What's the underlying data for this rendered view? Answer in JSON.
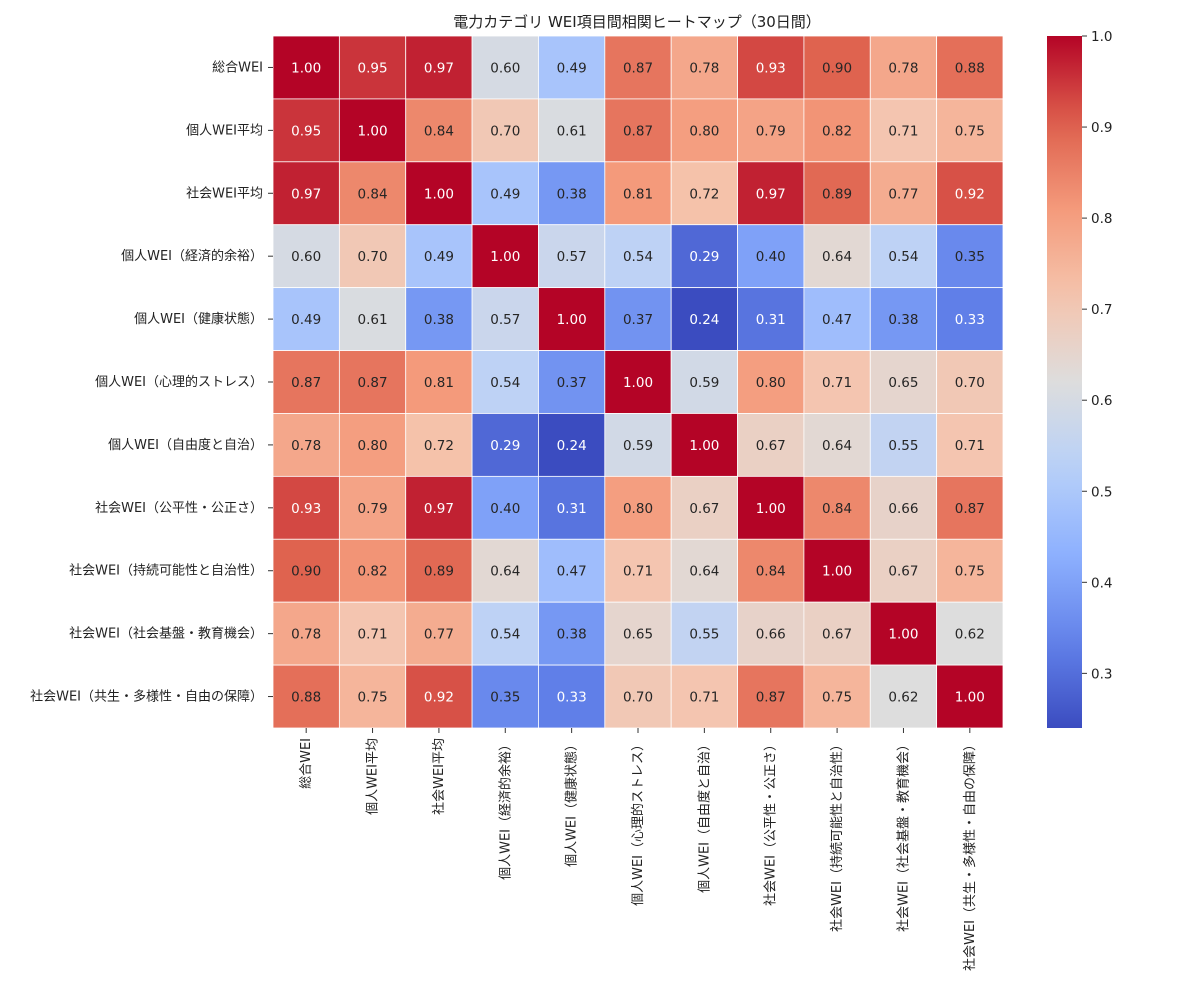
{
  "chart_data": {
    "type": "heatmap",
    "title": "電力カテゴリ WEI項目間相関ヒートマップ（30日間）",
    "xlabel": "",
    "ylabel": "",
    "colormap": "coolwarm",
    "vmin": 0.24,
    "vmax": 1.0,
    "colorbar_ticks": [
      0.3,
      0.4,
      0.5,
      0.6,
      0.7,
      0.8,
      0.9,
      1.0
    ],
    "colorbar_tick_labels": [
      "0.3",
      "0.4",
      "0.5",
      "0.6",
      "0.7",
      "0.8",
      "0.9",
      "1.0"
    ],
    "row_labels": [
      "総合WEI",
      "個人WEI平均",
      "社会WEI平均",
      "個人WEI（経済的余裕）",
      "個人WEI（健康状態）",
      "個人WEI（心理的ストレス）",
      "個人WEI（自由度と自治）",
      "社会WEI（公平性・公正さ）",
      "社会WEI（持続可能性と自治性）",
      "社会WEI（社会基盤・教育機会）",
      "社会WEI（共生・多様性・自由の保障）"
    ],
    "col_labels": [
      "総合WEI",
      "個人WEI平均",
      "社会WEI平均",
      "個人WEI（経済的余裕）",
      "個人WEI（健康状態）",
      "個人WEI（心理的ストレス）",
      "個人WEI（自由度と自治）",
      "社会WEI（公平性・公正さ）",
      "社会WEI（持続可能性と自治性）",
      "社会WEI（社会基盤・教育機会）",
      "社会WEI（共生・多様性・自由の保障）"
    ],
    "values": [
      [
        1.0,
        0.95,
        0.97,
        0.6,
        0.49,
        0.87,
        0.78,
        0.93,
        0.9,
        0.78,
        0.88
      ],
      [
        0.95,
        1.0,
        0.84,
        0.7,
        0.61,
        0.87,
        0.8,
        0.79,
        0.82,
        0.71,
        0.75
      ],
      [
        0.97,
        0.84,
        1.0,
        0.49,
        0.38,
        0.81,
        0.72,
        0.97,
        0.89,
        0.77,
        0.92
      ],
      [
        0.6,
        0.7,
        0.49,
        1.0,
        0.57,
        0.54,
        0.29,
        0.4,
        0.64,
        0.54,
        0.35
      ],
      [
        0.49,
        0.61,
        0.38,
        0.57,
        1.0,
        0.37,
        0.24,
        0.31,
        0.47,
        0.38,
        0.33
      ],
      [
        0.87,
        0.87,
        0.81,
        0.54,
        0.37,
        1.0,
        0.59,
        0.8,
        0.71,
        0.65,
        0.7
      ],
      [
        0.78,
        0.8,
        0.72,
        0.29,
        0.24,
        0.59,
        1.0,
        0.67,
        0.64,
        0.55,
        0.71
      ],
      [
        0.93,
        0.79,
        0.97,
        0.4,
        0.31,
        0.8,
        0.67,
        1.0,
        0.84,
        0.66,
        0.87
      ],
      [
        0.9,
        0.82,
        0.89,
        0.64,
        0.47,
        0.71,
        0.64,
        0.84,
        1.0,
        0.67,
        0.75
      ],
      [
        0.78,
        0.71,
        0.77,
        0.54,
        0.38,
        0.65,
        0.55,
        0.66,
        0.67,
        1.0,
        0.62
      ],
      [
        0.88,
        0.75,
        0.92,
        0.35,
        0.33,
        0.7,
        0.71,
        0.87,
        0.75,
        0.62,
        1.0
      ]
    ],
    "cell_labels": [
      [
        "1.00",
        "0.95",
        "0.97",
        "0.60",
        "0.49",
        "0.87",
        "0.78",
        "0.93",
        "0.90",
        "0.78",
        "0.88"
      ],
      [
        "0.95",
        "1.00",
        "0.84",
        "0.70",
        "0.61",
        "0.87",
        "0.80",
        "0.79",
        "0.82",
        "0.71",
        "0.75"
      ],
      [
        "0.97",
        "0.84",
        "1.00",
        "0.49",
        "0.38",
        "0.81",
        "0.72",
        "0.97",
        "0.89",
        "0.77",
        "0.92"
      ],
      [
        "0.60",
        "0.70",
        "0.49",
        "1.00",
        "0.57",
        "0.54",
        "0.29",
        "0.40",
        "0.64",
        "0.54",
        "0.35"
      ],
      [
        "0.49",
        "0.61",
        "0.38",
        "0.57",
        "1.00",
        "0.37",
        "0.24",
        "0.31",
        "0.47",
        "0.38",
        "0.33"
      ],
      [
        "0.87",
        "0.87",
        "0.81",
        "0.54",
        "0.37",
        "1.00",
        "0.59",
        "0.80",
        "0.71",
        "0.65",
        "0.70"
      ],
      [
        "0.78",
        "0.80",
        "0.72",
        "0.29",
        "0.24",
        "0.59",
        "1.00",
        "0.67",
        "0.64",
        "0.55",
        "0.71"
      ],
      [
        "0.93",
        "0.79",
        "0.97",
        "0.40",
        "0.31",
        "0.80",
        "0.67",
        "1.00",
        "0.84",
        "0.66",
        "0.87"
      ],
      [
        "0.90",
        "0.82",
        "0.89",
        "0.64",
        "0.47",
        "0.71",
        "0.64",
        "0.84",
        "1.00",
        "0.67",
        "0.75"
      ],
      [
        "0.78",
        "0.71",
        "0.77",
        "0.54",
        "0.38",
        "0.65",
        "0.55",
        "0.66",
        "0.67",
        "1.00",
        "0.62"
      ],
      [
        "0.88",
        "0.75",
        "0.92",
        "0.35",
        "0.33",
        "0.70",
        "0.71",
        "0.87",
        "0.75",
        "0.62",
        "1.00"
      ]
    ],
    "grid": false,
    "legend": "colorbar-right"
  }
}
